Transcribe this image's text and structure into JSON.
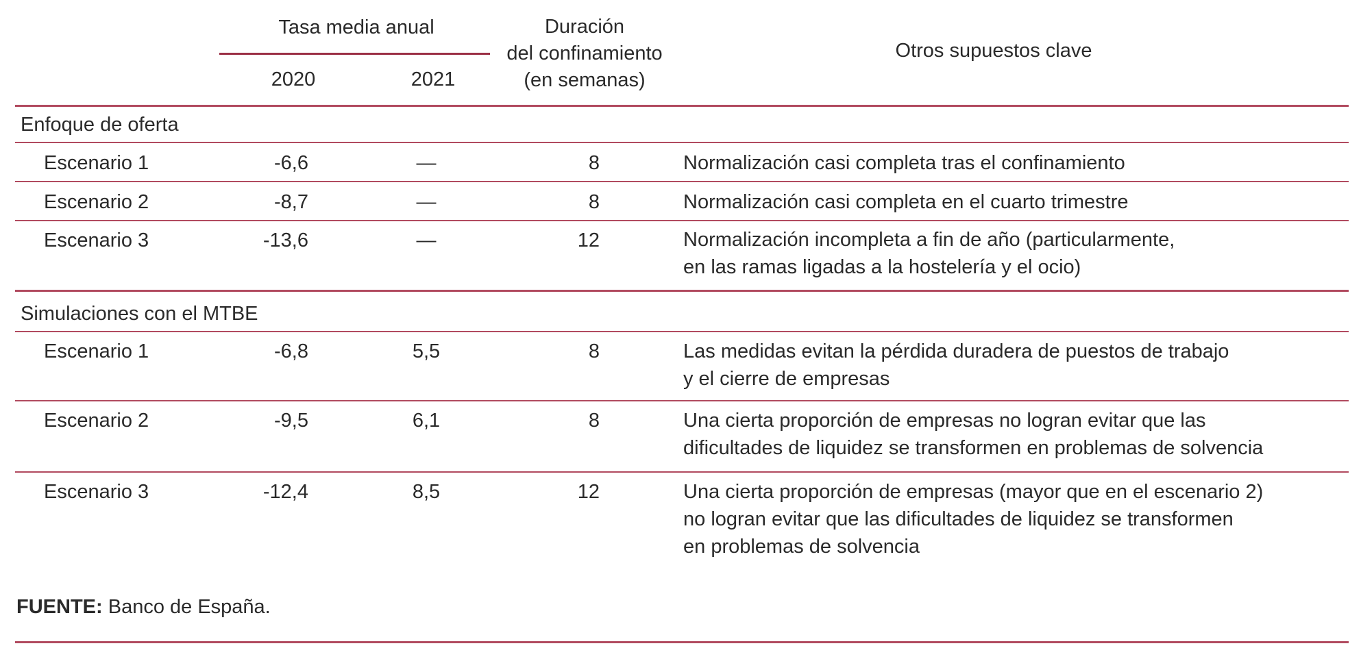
{
  "header": {
    "rate_group": "Tasa media anual",
    "year_2020": "2020",
    "year_2021": "2021",
    "duration": [
      "Duración",
      "del confinamiento",
      "(en semanas)"
    ],
    "other": "Otros supuestos clave"
  },
  "sections": [
    {
      "title": "Enfoque de oferta",
      "rows": [
        {
          "label": "Escenario  1",
          "v2020": "-6,6",
          "v2021": "—",
          "weeks": "8",
          "notes": [
            "Normalización casi completa tras el confinamiento"
          ]
        },
        {
          "label": "Escenario  2",
          "v2020": "-8,7",
          "v2021": "—",
          "weeks": "8",
          "notes": [
            "Normalización casi completa en el cuarto trimestre"
          ]
        },
        {
          "label": "Escenario  3",
          "v2020": "-13,6",
          "v2021": "—",
          "weeks": "12",
          "notes": [
            "Normalización incompleta a fin de año (particularmente,",
            "en las ramas ligadas a la hostelería y el ocio)"
          ]
        }
      ]
    },
    {
      "title": "Simulaciones con el MTBE",
      "rows": [
        {
          "label": "Escenario  1",
          "v2020": "-6,8",
          "v2021": "5,5",
          "weeks": "8",
          "notes": [
            "Las medidas evitan la pérdida duradera de puestos de trabajo",
            "y el cierre de empresas"
          ]
        },
        {
          "label": "Escenario  2",
          "v2020": "-9,5",
          "v2021": "6,1",
          "weeks": "8",
          "notes": [
            "Una cierta proporción de empresas no logran evitar que las",
            "dificultades de liquidez se transformen en problemas de solvencia"
          ]
        },
        {
          "label": "Escenario  3",
          "v2020": "-12,4",
          "v2021": "8,5",
          "weeks": "12",
          "notes": [
            "Una cierta proporción de empresas (mayor que en el escenario 2)",
            "no logran evitar que las dificultades de liquidez se transformen",
            "en problemas de solvencia"
          ]
        }
      ]
    }
  ],
  "footer": {
    "source_label": "FUENTE:",
    "source_text": " Banco de España."
  },
  "colors": {
    "rule": "#b14a5f",
    "text": "#2a2a2a"
  }
}
